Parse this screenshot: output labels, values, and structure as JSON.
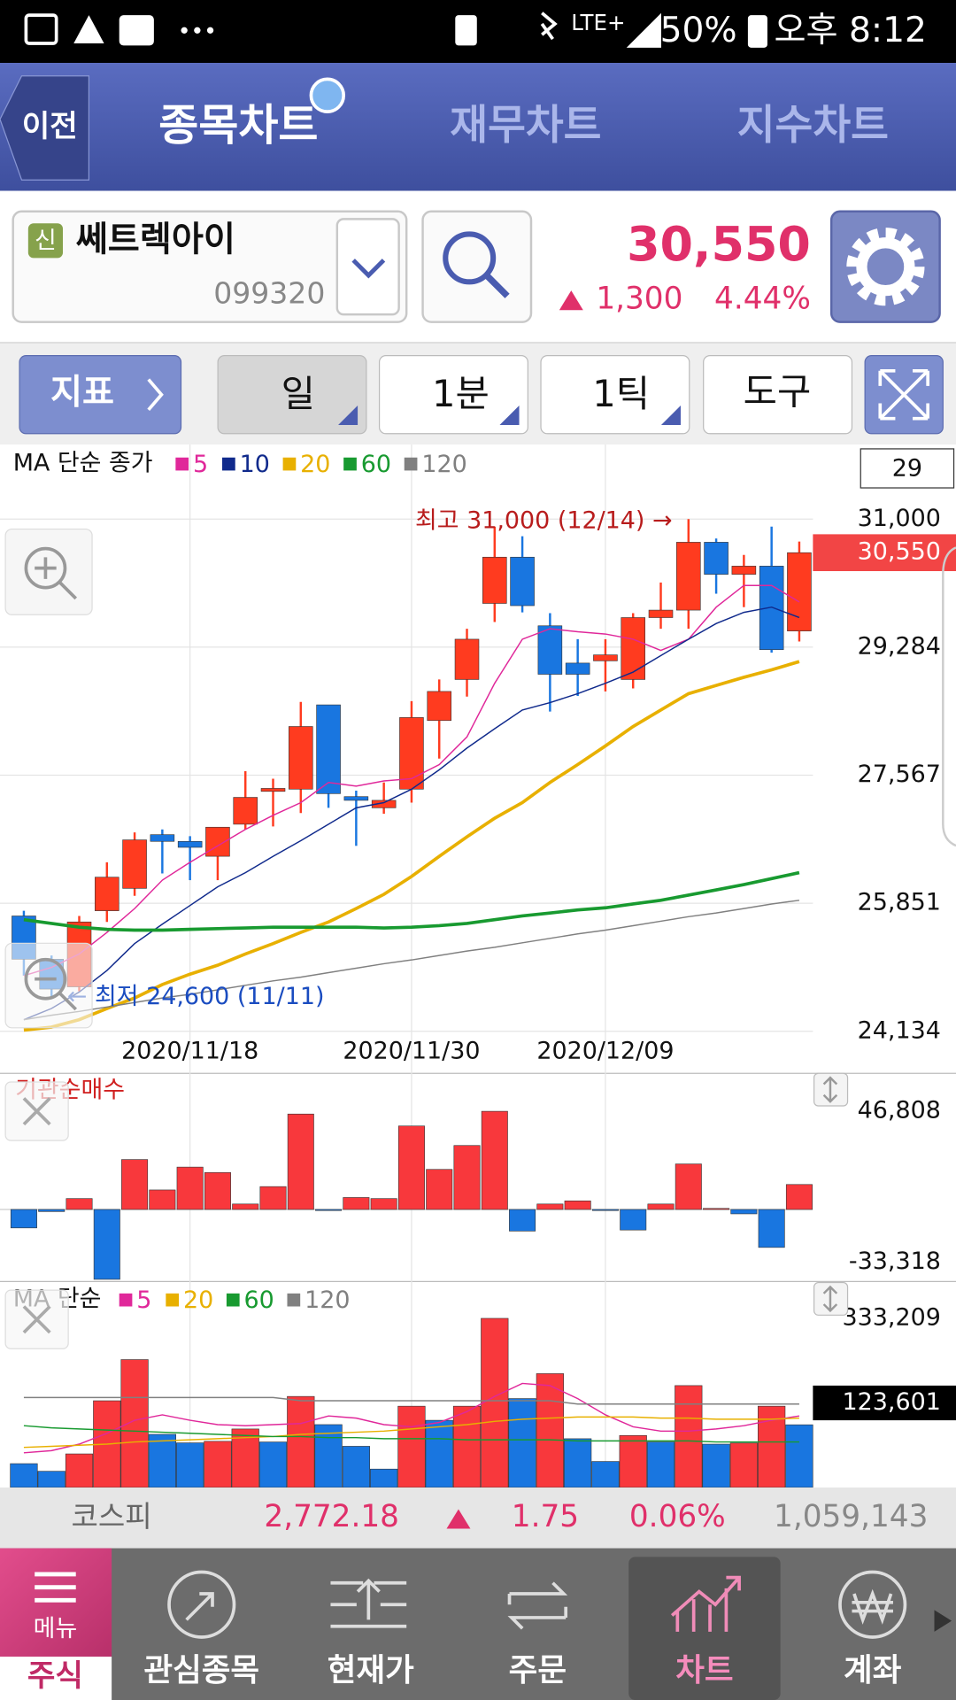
{
  "status_bar": {
    "battery": "50%",
    "time": "오후 8:12"
  },
  "nav": {
    "back": "이전",
    "tabs": [
      "종목차트",
      "재무차트",
      "지수차트"
    ]
  },
  "stock": {
    "badge": "신",
    "name": "쎄트렉아이",
    "code": "099320",
    "price": "30,550",
    "change": "1,300",
    "change_pct": "4.44%"
  },
  "toolbar": {
    "indicator": "지표",
    "periods": [
      "일",
      "1분",
      "1틱"
    ],
    "tools": "도구"
  },
  "price_chart": {
    "type": "candlestick",
    "legend_title": "MA 단순 종가",
    "count": 29,
    "categories": [
      null,
      null,
      null,
      null,
      null,
      null,
      "2020/11/18",
      null,
      null,
      null,
      null,
      null,
      null,
      null,
      "2020/11/30",
      null,
      null,
      null,
      null,
      null,
      null,
      "2020/12/09",
      null,
      null,
      null,
      null,
      null,
      null,
      null
    ],
    "candles": {
      "open": [
        25680,
        25100,
        24730,
        25750,
        26050,
        26770,
        26680,
        26480,
        26910,
        27350,
        27380,
        28510,
        27280,
        27130,
        27380,
        28300,
        28850,
        29870,
        30490,
        29570,
        29070,
        29100,
        28850,
        29680,
        29780,
        30690,
        30260,
        30370,
        29500
      ],
      "high": [
        25750,
        25150,
        25680,
        26400,
        26800,
        26840,
        26750,
        26870,
        27620,
        27520,
        28550,
        28510,
        27360,
        27470,
        28560,
        28850,
        29530,
        30900,
        30770,
        29740,
        29390,
        29390,
        29740,
        30150,
        31000,
        30740,
        30520,
        30900,
        30700
      ],
      "low": [
        24880,
        24600,
        24670,
        25600,
        25950,
        26250,
        26160,
        26160,
        26840,
        26880,
        27060,
        27130,
        26620,
        27050,
        27200,
        27790,
        28620,
        29620,
        29750,
        28420,
        28630,
        28690,
        28730,
        29530,
        29530,
        30000,
        29820,
        29210,
        29360
      ],
      "close": [
        25100,
        24700,
        25600,
        26200,
        26700,
        26680,
        26600,
        26870,
        27270,
        27390,
        28220,
        27320,
        27230,
        27230,
        28340,
        28690,
        29390,
        30490,
        29840,
        28920,
        28920,
        29180,
        29680,
        29780,
        30690,
        30260,
        30370,
        29250,
        30550
      ],
      "up_color": "#ff3b1f",
      "down_color": "#1976e0"
    },
    "series": [
      {
        "name": "5",
        "color": "#e0289a",
        "values": [
          24880,
          24990,
          25170,
          25460,
          25780,
          26160,
          26400,
          26620,
          26840,
          27030,
          27200,
          27470,
          27420,
          27490,
          27520,
          27710,
          28080,
          28800,
          29390,
          29530,
          29490,
          29460,
          29390,
          29240,
          29390,
          29820,
          30110,
          30110,
          29890
        ]
      },
      {
        "name": "10",
        "color": "#102a8c",
        "values": [
          24290,
          24440,
          24660,
          24950,
          25310,
          25570,
          25820,
          26070,
          26260,
          26480,
          26690,
          26910,
          27130,
          27200,
          27380,
          27640,
          27930,
          28190,
          28440,
          28540,
          28660,
          28800,
          28950,
          29170,
          29390,
          29600,
          29750,
          29820,
          29680
        ]
      },
      {
        "name": "20",
        "color": "#e8b000",
        "values": [
          24150,
          24190,
          24290,
          24440,
          24580,
          24760,
          24900,
          25020,
          25170,
          25310,
          25460,
          25600,
          25780,
          25970,
          26210,
          26480,
          26740,
          26990,
          27200,
          27470,
          27710,
          27960,
          28220,
          28440,
          28660,
          28770,
          28880,
          28980,
          29090
        ]
      },
      {
        "name": "60",
        "color": "#189a30",
        "values": [
          25630,
          25580,
          25530,
          25500,
          25490,
          25490,
          25500,
          25510,
          25520,
          25530,
          25530,
          25530,
          25530,
          25520,
          25530,
          25550,
          25580,
          25630,
          25680,
          25720,
          25760,
          25790,
          25840,
          25890,
          25960,
          26030,
          26100,
          26180,
          26260
        ]
      },
      {
        "name": "120",
        "color": "#808080",
        "values": [
          24290,
          24350,
          24400,
          24460,
          24520,
          24580,
          24630,
          24690,
          24750,
          24810,
          24860,
          24920,
          24980,
          25040,
          25090,
          25150,
          25210,
          25260,
          25320,
          25380,
          25440,
          25490,
          25550,
          25610,
          25670,
          25720,
          25780,
          25840,
          25890
        ]
      }
    ],
    "ylim": [
      24050,
      32000
    ],
    "yticks": [
      {
        "value": 31000,
        "label": "31,000"
      },
      {
        "value": 29284,
        "label": "29,284"
      },
      {
        "value": 27567,
        "label": "27,567"
      },
      {
        "value": 25851,
        "label": "25,851"
      },
      {
        "value": 24134,
        "label": "24,134"
      }
    ],
    "last_label": "30,550",
    "annotations": [
      "최고 31,000 (12/14) →",
      "← 최저 24,600 (11/11)"
    ],
    "grid": true
  },
  "institution_chart": {
    "type": "bar",
    "title": "기관순매수",
    "values": [
      -8800,
      -1000,
      5200,
      -33318,
      23800,
      9300,
      20200,
      17600,
      2600,
      10900,
      45500,
      -500,
      5700,
      5200,
      39800,
      19100,
      30500,
      46808,
      -10300,
      2600,
      4100,
      -500,
      -9800,
      2600,
      21700,
      500,
      -2100,
      -18100,
      11900
    ],
    "up_color": "#f8383c",
    "down_color": "#1976e0",
    "ylim": [
      -33318,
      46808
    ],
    "yticks": [
      {
        "value": 46808,
        "label": "46,808"
      },
      {
        "value": -33318,
        "label": "-33,318"
      }
    ]
  },
  "volume_chart": {
    "type": "bar",
    "legend_title": "MA 단순",
    "values": [
      47000,
      32000,
      66200,
      170900,
      252000,
      104700,
      88000,
      91000,
      115300,
      89700,
      179400,
      123900,
      81200,
      36300,
      160200,
      132400,
      160200,
      333209,
      175200,
      224300,
      96100,
      51300,
      102500,
      89700,
      200800,
      85400,
      87600,
      160200,
      123601
    ],
    "up_color": "#f8383c",
    "down_color": "#1976e0",
    "series": [
      {
        "name": "5",
        "color": "#e0289a",
        "values": [
          68400,
          72600,
          85400,
          106800,
          132400,
          143100,
          132400,
          123900,
          121800,
          123900,
          126000,
          141000,
          136700,
          123900,
          119600,
          128200,
          149500,
          179400,
          205100,
          200800,
          175200,
          143100,
          119600,
          111100,
          111100,
          115300,
          121800,
          132400,
          141000
        ]
      },
      {
        "name": "20",
        "color": "#e8b000",
        "values": [
          79000,
          81200,
          83300,
          85400,
          89700,
          91800,
          94000,
          96100,
          98300,
          100400,
          104700,
          106800,
          108900,
          111100,
          115300,
          119600,
          123900,
          130300,
          134600,
          136700,
          138800,
          138800,
          138800,
          136700,
          136700,
          134600,
          134600,
          134600,
          136700
        ]
      },
      {
        "name": "60",
        "color": "#189a30",
        "values": [
          121800,
          117500,
          115300,
          113200,
          111100,
          108900,
          106800,
          104700,
          102500,
          100400,
          100400,
          98300,
          98300,
          96100,
          96100,
          96100,
          94000,
          94000,
          94000,
          94000,
          91800,
          91800,
          91800,
          91800,
          91800,
          89700,
          89700,
          89700,
          89700
        ]
      },
      {
        "name": "120",
        "color": "#808080",
        "values": [
          177300,
          177300,
          177300,
          177300,
          177300,
          177300,
          177300,
          177300,
          177300,
          177300,
          170900,
          170900,
          170900,
          170900,
          170900,
          170900,
          170900,
          170900,
          170900,
          170900,
          164500,
          164500,
          164500,
          164500,
          164500,
          164500,
          164500,
          164500,
          164500
        ]
      }
    ],
    "ylim": [
      0,
      333209
    ],
    "yticks": [
      {
        "value": 333209,
        "label": "333,209"
      }
    ],
    "last_label": "123,601"
  },
  "market": {
    "name": "코스피",
    "index": "2,772.18",
    "change": "1.75",
    "change_pct": "0.06%",
    "volume": "1,059,143"
  },
  "bottom_nav": {
    "menu": "메뉴",
    "section": "주식",
    "tabs": [
      "관심종목",
      "현재가",
      "주문",
      "차트",
      "계좌"
    ],
    "selected": 3
  }
}
